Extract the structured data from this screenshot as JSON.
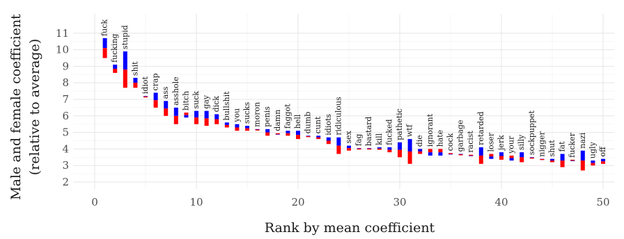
{
  "chart_data": {
    "type": "bar",
    "xlabel": "Rank by mean coefficient",
    "ylabel_line1": "Male and female coefficient",
    "ylabel_line2": "(relative to average)",
    "xlim": [
      0,
      50
    ],
    "ylim": [
      2,
      11
    ],
    "x_ticks": [
      0,
      10,
      20,
      30,
      40,
      50
    ],
    "y_ticks": [
      2,
      3,
      4,
      5,
      6,
      7,
      8,
      9,
      10,
      11
    ],
    "colors": {
      "male": "#0000ff",
      "female": "#ff0000"
    },
    "grid": true,
    "points": [
      {
        "rank": 1,
        "word": "fuck",
        "male": 10.7,
        "female": 9.5
      },
      {
        "rank": 2,
        "word": "fucking",
        "male": 9.1,
        "female": 8.6
      },
      {
        "rank": 3,
        "word": "stupid",
        "male": 9.9,
        "female": 7.7
      },
      {
        "rank": 4,
        "word": "shit",
        "male": 8.3,
        "female": 7.7
      },
      {
        "rank": 5,
        "word": "idiot",
        "male": 7.2,
        "female": 7.15
      },
      {
        "rank": 6,
        "word": "crap",
        "male": 7.4,
        "female": 6.5
      },
      {
        "rank": 7,
        "word": "ass",
        "male": 6.9,
        "female": 6.0
      },
      {
        "rank": 8,
        "word": "asshole",
        "male": 6.5,
        "female": 5.5
      },
      {
        "rank": 9,
        "word": "bitch",
        "male": 5.9,
        "female": 6.2
      },
      {
        "rank": 10,
        "word": "suck",
        "male": 6.3,
        "female": 5.5
      },
      {
        "rank": 11,
        "word": "gay",
        "male": 6.3,
        "female": 5.4
      },
      {
        "rank": 12,
        "word": "dick",
        "male": 6.1,
        "female": 5.5
      },
      {
        "rank": 13,
        "word": "bullshit",
        "male": 5.6,
        "female": 5.3
      },
      {
        "rank": 14,
        "word": "you",
        "male": 5.5,
        "female": 5.1
      },
      {
        "rank": 15,
        "word": "sucks",
        "male": 5.4,
        "female": 5.1
      },
      {
        "rank": 16,
        "word": "moron",
        "male": 5.2,
        "female": 5.15
      },
      {
        "rank": 17,
        "word": "penis",
        "male": 5.2,
        "female": 4.8
      },
      {
        "rank": 18,
        "word": "damn",
        "male": 4.9,
        "female": 4.95
      },
      {
        "rank": 19,
        "word": "faggot",
        "male": 5.1,
        "female": 4.8
      },
      {
        "rank": 20,
        "word": "hell",
        "male": 5.1,
        "female": 4.6
      },
      {
        "rank": 21,
        "word": "dumb",
        "male": 4.8,
        "female": 4.75
      },
      {
        "rank": 22,
        "word": "cunt",
        "male": 4.8,
        "female": 4.6
      },
      {
        "rank": 23,
        "word": "idiots",
        "male": 4.7,
        "female": 4.3
      },
      {
        "rank": 24,
        "word": "ridiculous",
        "male": 4.7,
        "female": 3.7
      },
      {
        "rank": 25,
        "word": "sex",
        "male": 4.2,
        "female": 3.9
      },
      {
        "rank": 26,
        "word": "fag",
        "male": 4.05,
        "female": 4.0
      },
      {
        "rank": 27,
        "word": "bastard",
        "male": 4.05,
        "female": 4.0
      },
      {
        "rank": 28,
        "word": "kill",
        "male": 4.1,
        "female": 3.95
      },
      {
        "rank": 29,
        "word": "fucked",
        "male": 4.1,
        "female": 3.8
      },
      {
        "rank": 30,
        "word": "pathetic",
        "male": 4.4,
        "female": 3.5
      },
      {
        "rank": 31,
        "word": "wtf",
        "male": 4.6,
        "female": 3.1
      },
      {
        "rank": 32,
        "word": "die",
        "male": 4.0,
        "female": 3.7
      },
      {
        "rank": 33,
        "word": "ignorant",
        "male": 3.6,
        "female": 4.0
      },
      {
        "rank": 34,
        "word": "hate",
        "male": 3.6,
        "female": 4.0
      },
      {
        "rank": 35,
        "word": "cock",
        "male": 3.7,
        "female": 3.75
      },
      {
        "rank": 36,
        "word": "garbage",
        "male": 3.7,
        "female": 3.65
      },
      {
        "rank": 37,
        "word": "racist",
        "male": 3.6,
        "female": 3.65
      },
      {
        "rank": 38,
        "word": "retarded",
        "male": 4.1,
        "female": 3.1
      },
      {
        "rank": 39,
        "word": "loser",
        "male": 3.4,
        "female": 3.7
      },
      {
        "rank": 40,
        "word": "jerk",
        "male": 3.8,
        "female": 3.35
      },
      {
        "rank": 41,
        "word": "your",
        "male": 3.3,
        "female": 3.6
      },
      {
        "rank": 42,
        "word": "silly",
        "male": 3.8,
        "female": 3.2
      },
      {
        "rank": 43,
        "word": "sockpuppet",
        "male": 3.5,
        "female": 3.45
      },
      {
        "rank": 44,
        "word": "nigger",
        "male": 3.4,
        "female": 3.38
      },
      {
        "rank": 45,
        "word": "shut",
        "male": 3.4,
        "female": 3.2
      },
      {
        "rank": 46,
        "word": "fat",
        "male": 3.7,
        "female": 2.9
      },
      {
        "rank": 47,
        "word": "fucker",
        "male": 3.3,
        "female": 3.35
      },
      {
        "rank": 48,
        "word": "nazi",
        "male": 3.9,
        "female": 2.7
      },
      {
        "rank": 49,
        "word": "ugly",
        "male": 3.3,
        "female": 3.0
      },
      {
        "rank": 50,
        "word": "off",
        "male": 3.4,
        "female": 3.1
      }
    ]
  }
}
